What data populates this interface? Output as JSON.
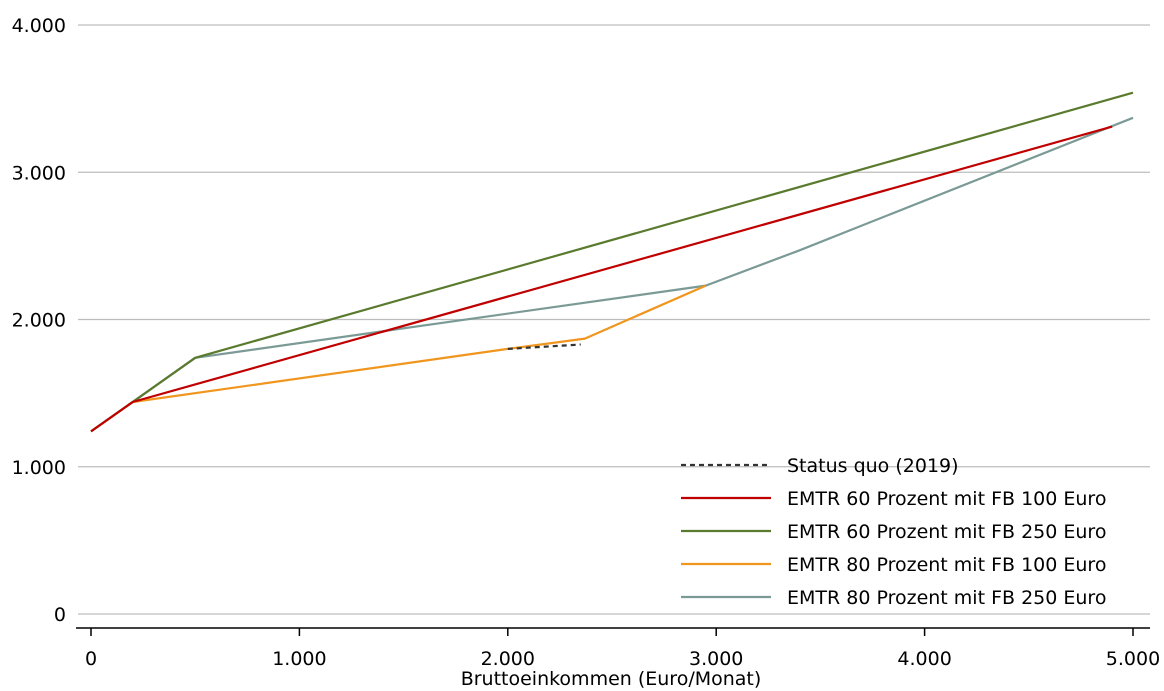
{
  "chart_data": {
    "type": "line",
    "title": "",
    "xlabel": "Bruttoeinkommen (Euro/Monat)",
    "ylabel": "",
    "xlim": [
      0,
      5000
    ],
    "ylim": [
      0,
      4000
    ],
    "x_ticks": [
      0,
      1000,
      2000,
      3000,
      4000,
      5000
    ],
    "x_tick_labels": [
      "0",
      "1.000",
      "2.000",
      "3.000",
      "4.000",
      "5.000"
    ],
    "y_ticks": [
      0,
      1000,
      2000,
      3000,
      4000
    ],
    "y_tick_labels": [
      "0",
      "1.000",
      "2.000",
      "3.000",
      "4.000"
    ],
    "grid": "horizontal",
    "legend_position": "bottom-right",
    "series": [
      {
        "name": "Status quo (2019)",
        "color": "#333333",
        "dash": true,
        "points": [
          [
            2000,
            1800
          ],
          [
            2350,
            1830
          ]
        ]
      },
      {
        "name": "EMTR 60 Prozent mit FB 100 Euro",
        "color": "#c00000",
        "dash": false,
        "points": [
          [
            0,
            1240
          ],
          [
            200,
            1440
          ],
          [
            4900,
            3310
          ]
        ]
      },
      {
        "name": "EMTR 60 Prozent mit FB 250 Euro",
        "color": "#5a7a2e",
        "dash": false,
        "points": [
          [
            0,
            1240
          ],
          [
            500,
            1740
          ],
          [
            5000,
            3540
          ]
        ]
      },
      {
        "name": "EMTR 80 Prozent mit FB 100 Euro",
        "color": "#f0961e",
        "dash": false,
        "points": [
          [
            0,
            1240
          ],
          [
            200,
            1440
          ],
          [
            2000,
            1800
          ],
          [
            2370,
            1870
          ],
          [
            2950,
            2230
          ]
        ]
      },
      {
        "name": "EMTR 80 Prozent mit FB 250 Euro",
        "color": "#7b9a96",
        "dash": false,
        "points": [
          [
            0,
            1240
          ],
          [
            500,
            1740
          ],
          [
            2950,
            2230
          ],
          [
            3400,
            2470
          ],
          [
            5000,
            3370
          ]
        ]
      }
    ]
  }
}
